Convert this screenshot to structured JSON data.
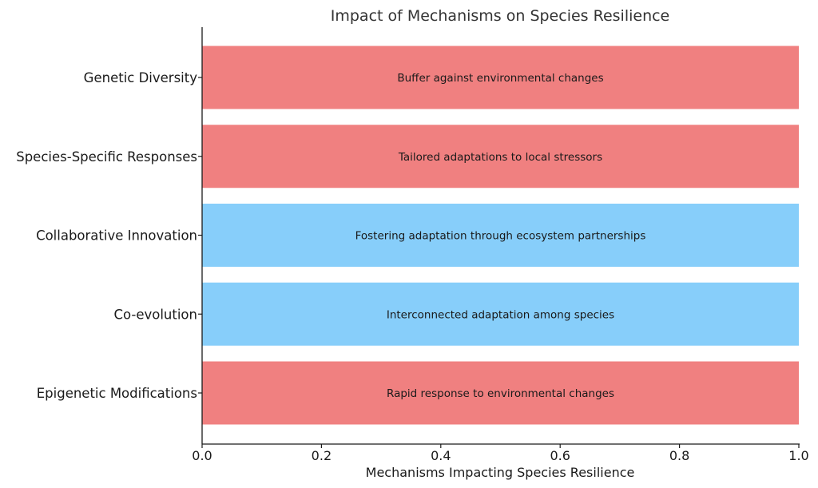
{
  "chart_data": {
    "type": "bar",
    "orientation": "horizontal",
    "title": "Impact of Mechanisms on Species Resilience",
    "xlabel": "Mechanisms Impacting Species Resilience",
    "ylabel": "",
    "xlim": [
      0,
      1
    ],
    "xticks": [
      "0.0",
      "0.2",
      "0.4",
      "0.6",
      "0.8",
      "1.0"
    ],
    "grid": false,
    "categories": [
      "Genetic Diversity",
      "Species-Specific Responses",
      "Collaborative Innovation",
      "Co-evolution",
      "Epigenetic Modifications"
    ],
    "values": [
      1,
      1,
      1,
      1,
      1
    ],
    "annotations": [
      "Buffer against environmental changes",
      "Tailored adaptations to local stressors",
      "Fostering adaptation through ecosystem partnerships",
      "Interconnected adaptation among species",
      "Rapid response to environmental changes"
    ],
    "colors": [
      "#f08080",
      "#f08080",
      "#87cefa",
      "#87cefa",
      "#f08080"
    ]
  }
}
